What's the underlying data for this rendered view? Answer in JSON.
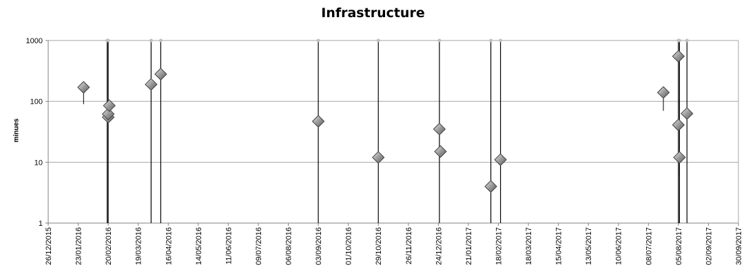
{
  "chart_data": {
    "type": "scatter",
    "title": "Infrastructure",
    "xlabel": "",
    "ylabel": "minues",
    "yscale": "log",
    "ylim": [
      1,
      1000
    ],
    "yticks": [
      "1",
      "10",
      "100",
      "1000"
    ],
    "xlim": [
      "2015-12-26",
      "2017-09-30"
    ],
    "xticks": [
      "26/12/2015",
      "23/01/2016",
      "20/02/2016",
      "19/03/2016",
      "16/04/2016",
      "14/05/2016",
      "11/06/2016",
      "09/07/2016",
      "06/08/2016",
      "03/09/2016",
      "01/10/2016",
      "29/10/2016",
      "26/11/2016",
      "24/12/2016",
      "21/01/2017",
      "18/02/2017",
      "18/03/2017",
      "15/04/2017",
      "13/05/2017",
      "10/06/2017",
      "08/07/2017",
      "05/08/2017",
      "02/09/2017",
      "30/09/2017"
    ],
    "grid": "horizontal",
    "legend": "none",
    "points": [
      {
        "x": "2016-01-28",
        "y": 170
      },
      {
        "x": "2016-02-20",
        "y": 55
      },
      {
        "x": "2016-02-20",
        "y": 62
      },
      {
        "x": "2016-02-21",
        "y": 85
      },
      {
        "x": "2016-03-31",
        "y": 190
      },
      {
        "x": "2016-04-09",
        "y": 280
      },
      {
        "x": "2016-09-03",
        "y": 47
      },
      {
        "x": "2016-10-29",
        "y": 12
      },
      {
        "x": "2016-12-25",
        "y": 35
      },
      {
        "x": "2016-12-26",
        "y": 15
      },
      {
        "x": "2017-02-11",
        "y": 4
      },
      {
        "x": "2017-02-20",
        "y": 11
      },
      {
        "x": "2017-07-22",
        "y": 140
      },
      {
        "x": "2017-08-05",
        "y": 550
      },
      {
        "x": "2017-08-05",
        "y": 41
      },
      {
        "x": "2017-08-06",
        "y": 12
      },
      {
        "x": "2017-08-13",
        "y": 63
      }
    ],
    "events": [
      "2016-02-19",
      "2016-02-20",
      "2016-03-31",
      "2016-04-09",
      "2016-09-03",
      "2016-10-29",
      "2016-12-25",
      "2017-02-11",
      "2017-02-20",
      "2017-08-05",
      "2017-08-06",
      "2017-08-13"
    ],
    "error_bars": [
      {
        "x": "2016-01-28",
        "low": 90,
        "high": 170
      },
      {
        "x": "2017-07-22",
        "low": 70,
        "high": 140
      },
      {
        "x": "2017-08-06",
        "low": 6,
        "high": 12
      }
    ],
    "colors": {
      "marker": "#8c8c8c",
      "marker_edge": "#404040",
      "gridline": "#a6a6a6",
      "event_line": "#000000",
      "event_cap": "#bfbfbf"
    }
  }
}
